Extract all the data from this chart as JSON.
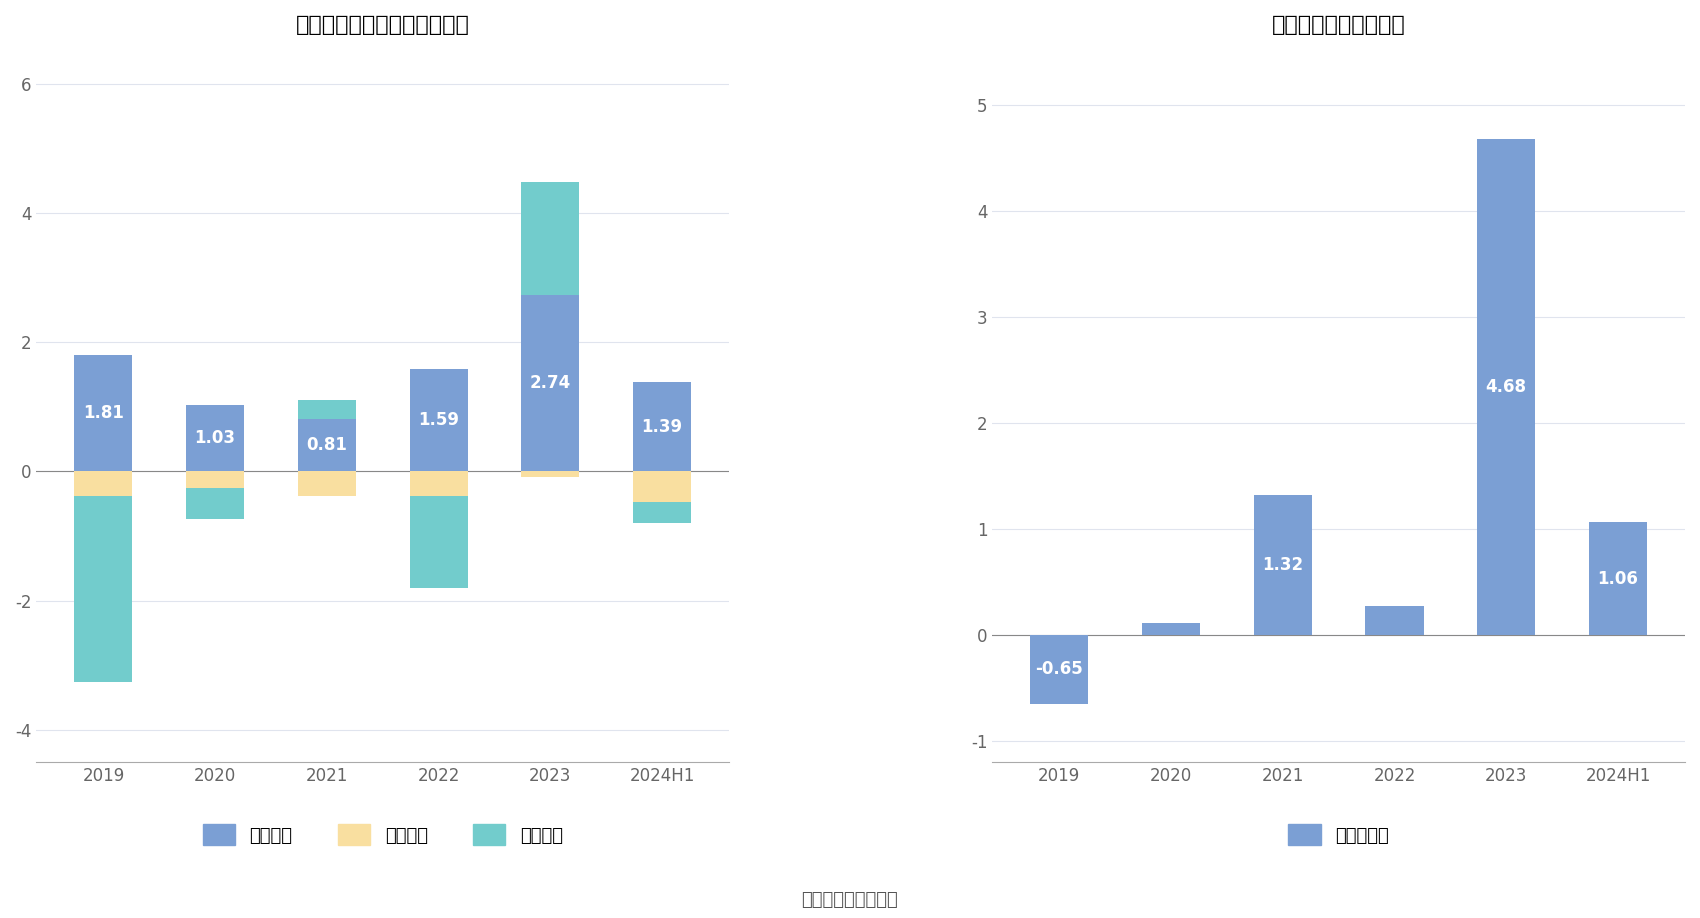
{
  "categories": [
    "2019",
    "2020",
    "2021",
    "2022",
    "2023",
    "2024H1"
  ],
  "operating": [
    1.81,
    1.03,
    0.81,
    1.59,
    2.74,
    1.39
  ],
  "financing": [
    -0.38,
    -0.25,
    -0.38,
    -0.38,
    -0.08,
    -0.48
  ],
  "investing": [
    -2.88,
    -0.48,
    0.3,
    -1.42,
    1.74,
    -0.32
  ],
  "free_cash": [
    -0.65,
    0.11,
    1.32,
    0.27,
    4.68,
    1.06
  ],
  "title_left": "长盛轴承现金流净额（亿元）",
  "title_right": "自由现金流量（亿元）",
  "legend_left": [
    "经营活动",
    "筹资活动",
    "投资活动"
  ],
  "legend_right": [
    "自由现金流"
  ],
  "color_operating": "#7B9FD4",
  "color_financing": "#F9DFA0",
  "color_investing": "#72CCCC",
  "color_free": "#7B9FD4",
  "bg_color": "#FFFFFF",
  "ylim_left": [
    -4.5,
    6.5
  ],
  "ylim_right": [
    -1.2,
    5.5
  ],
  "yticks_left": [
    -4,
    -2,
    0,
    2,
    4,
    6
  ],
  "yticks_right": [
    -1,
    0,
    1,
    2,
    3,
    4,
    5
  ],
  "source_text": "数据来源：恒生聚源",
  "title_fontsize": 16,
  "tick_fontsize": 12,
  "label_fontsize": 12,
  "bar_width": 0.52
}
